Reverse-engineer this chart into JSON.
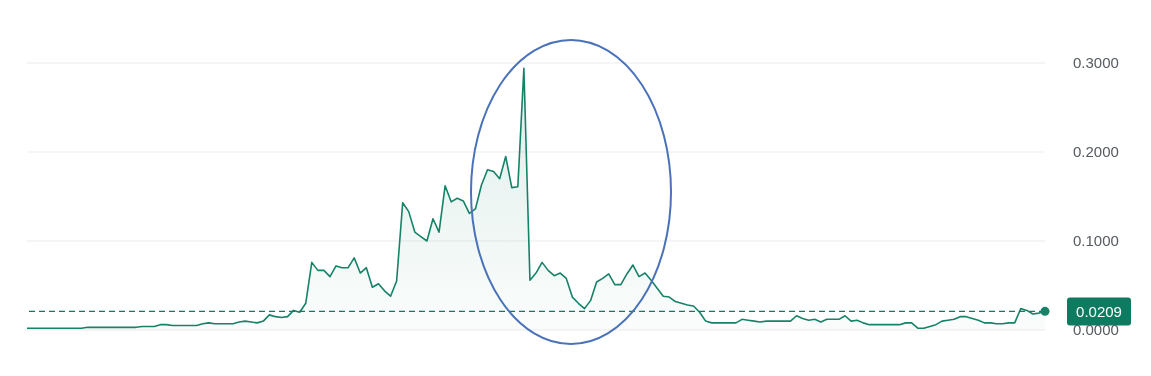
{
  "chart_data": {
    "type": "area",
    "categories": [
      null,
      null,
      null,
      null,
      null,
      null,
      null,
      null,
      null,
      null,
      null,
      null,
      null,
      null,
      null,
      null,
      null,
      null,
      null,
      null,
      null,
      null,
      null,
      null,
      null,
      null,
      null,
      null,
      null,
      null,
      null,
      null,
      null,
      null,
      null,
      null,
      null,
      null,
      null,
      null,
      null,
      null,
      null,
      null,
      null,
      null,
      null,
      null,
      null,
      null,
      null,
      null,
      null,
      null,
      null,
      null,
      null,
      null,
      null,
      null,
      null,
      null,
      null,
      null,
      null,
      null,
      null,
      null,
      null,
      null,
      null,
      null,
      null,
      null,
      null,
      null,
      null,
      null,
      null,
      null,
      null,
      null,
      null,
      null,
      null,
      null,
      null,
      null,
      null,
      null,
      null,
      null,
      null,
      null,
      null,
      null,
      null,
      null,
      null,
      null,
      null,
      null,
      null,
      null,
      null,
      null,
      null,
      null,
      null,
      null,
      null,
      null,
      null,
      null,
      null,
      null,
      null,
      null,
      null,
      null,
      null,
      null,
      null,
      null,
      null,
      null,
      null,
      null,
      null,
      null,
      null,
      null,
      null,
      null,
      null,
      null,
      null,
      null,
      null,
      null,
      null,
      null,
      null,
      null,
      null,
      null,
      null,
      null,
      null,
      null,
      null,
      null,
      null,
      null,
      null,
      null,
      null,
      null,
      null,
      null,
      null,
      null,
      null,
      null,
      null,
      null,
      null,
      null,
      null
    ],
    "series": [
      {
        "color": "#168268",
        "values": [
          0.002,
          0.002,
          0.002,
          0.002,
          0.002,
          0.002,
          0.002,
          0.002,
          0.002,
          0.002,
          0.003,
          0.003,
          0.003,
          0.003,
          0.003,
          0.003,
          0.003,
          0.003,
          0.003,
          0.004,
          0.004,
          0.004,
          0.006,
          0.006,
          0.005,
          0.005,
          0.005,
          0.005,
          0.005,
          0.007,
          0.008,
          0.007,
          0.007,
          0.007,
          0.007,
          0.009,
          0.01,
          0.009,
          0.008,
          0.01,
          0.017,
          0.015,
          0.014,
          0.015,
          0.022,
          0.02,
          0.03,
          0.076,
          0.067,
          0.067,
          0.06,
          0.072,
          0.07,
          0.07,
          0.081,
          0.064,
          0.07,
          0.048,
          0.052,
          0.044,
          0.038,
          0.055,
          0.143,
          0.133,
          0.11,
          0.105,
          0.1,
          0.125,
          0.11,
          0.162,
          0.144,
          0.148,
          0.145,
          0.131,
          0.136,
          0.163,
          0.18,
          0.178,
          0.17,
          0.195,
          0.16,
          0.161,
          0.294,
          0.056,
          0.064,
          0.076,
          0.067,
          0.061,
          0.064,
          0.058,
          0.037,
          0.03,
          0.024,
          0.033,
          0.054,
          0.058,
          0.063,
          0.051,
          0.051,
          0.063,
          0.073,
          0.06,
          0.064,
          0.056,
          0.047,
          0.038,
          0.037,
          0.032,
          0.03,
          0.028,
          0.027,
          0.02,
          0.01,
          0.008,
          0.008,
          0.008,
          0.008,
          0.008,
          0.012,
          0.011,
          0.01,
          0.009,
          0.01,
          0.01,
          0.01,
          0.01,
          0.01,
          0.016,
          0.013,
          0.011,
          0.012,
          0.009,
          0.012,
          0.012,
          0.012,
          0.016,
          0.01,
          0.011,
          0.008,
          0.006,
          0.006,
          0.006,
          0.006,
          0.006,
          0.006,
          0.008,
          0.008,
          0.002,
          0.002,
          0.004,
          0.006,
          0.01,
          0.011,
          0.012,
          0.015,
          0.015,
          0.013,
          0.011,
          0.008,
          0.008,
          0.007,
          0.007,
          0.008,
          0.008,
          0.024,
          0.022,
          0.018,
          0.019,
          0.021
        ]
      }
    ],
    "ylim": [
      0,
      0.3
    ],
    "yticks": [
      {
        "value": 0,
        "label": "0.0000"
      },
      {
        "value": 0.1,
        "label": "0.1000"
      },
      {
        "value": 0.2,
        "label": "0.2000"
      },
      {
        "value": 0.3,
        "label": "0.3000"
      }
    ],
    "grid": "y",
    "tick_labels": "y",
    "legend": false,
    "marker": "none",
    "line_style": "solid",
    "ref_lines": [
      {
        "axis": "y",
        "value": 0.0209,
        "label": "0.0209",
        "color": "#0e7a5f",
        "line_style": "dashed"
      }
    ]
  }
}
